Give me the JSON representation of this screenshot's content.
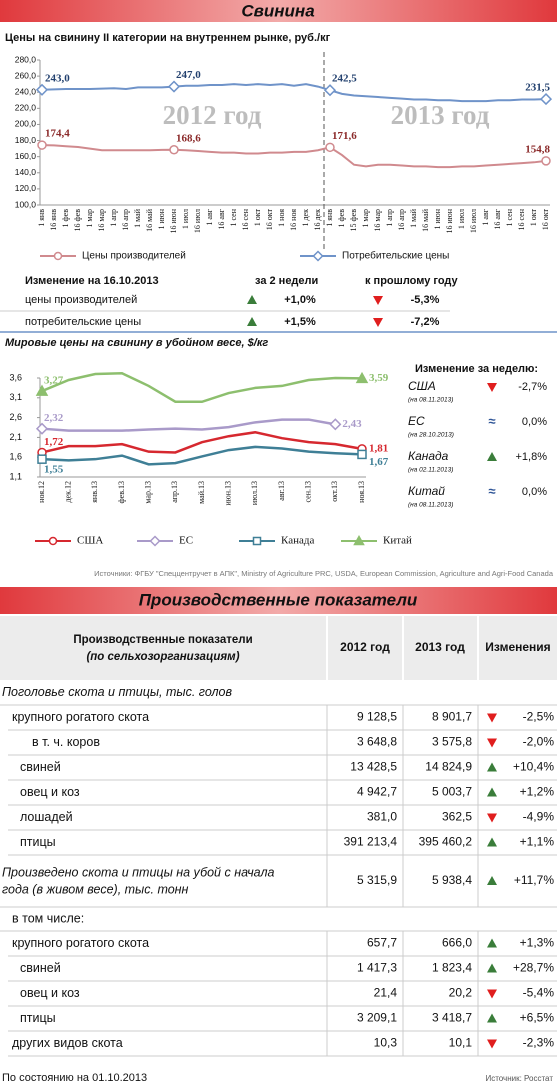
{
  "header": {
    "title": "Свинина"
  },
  "chart_data": [
    {
      "type": "line",
      "title": "Цены на свинину II категории на внутреннем рынке, руб./кг",
      "categories": [
        "1 янв",
        "16 янв",
        "1 фев",
        "16 фев",
        "1 мар",
        "16 мар",
        "1 апр",
        "16 апр",
        "1 май",
        "16 май",
        "1 июн",
        "16 июн",
        "1 июл",
        "16 июл",
        "1 авг",
        "16 авг",
        "1 сен",
        "16 сен",
        "1 окт",
        "16 окт",
        "1 ноя",
        "16 ноя",
        "1 дек",
        "16 дек",
        "1 янв",
        "1 фев",
        "15 фев",
        "1 мар",
        "16 мар",
        "1 апр",
        "16 апр",
        "1 май",
        "16 май",
        "1 июн",
        "16 июн",
        "1 июл",
        "16 июл",
        "1 авг",
        "16 авг",
        "1 сен",
        "16 сен",
        "1 окт",
        "16 окт"
      ],
      "ylim": [
        100,
        280
      ],
      "yticks": [
        {
          "value": 100,
          "label": "100,0"
        },
        {
          "value": 120,
          "label": "120,0"
        },
        {
          "value": 140,
          "label": "140,0"
        },
        {
          "value": 160,
          "label": "160,0"
        },
        {
          "value": 180,
          "label": "180,0"
        },
        {
          "value": 200,
          "label": "200,0"
        },
        {
          "value": 220,
          "label": "220,0"
        },
        {
          "value": 240,
          "label": "240,0"
        },
        {
          "value": 260,
          "label": "260,0"
        },
        {
          "value": 280,
          "label": "280,0"
        }
      ],
      "annotations": [
        "2012 год",
        "2013 год"
      ],
      "series": [
        {
          "name": "Цены производителей",
          "color": "#d08a8e",
          "label_color": "#8b2a2a",
          "marker": "circle",
          "values": [
            174.4,
            174,
            173,
            172,
            170,
            168,
            168,
            168,
            168,
            168,
            168.5,
            168.6,
            168,
            167,
            166,
            165,
            165,
            164,
            164,
            165,
            165,
            166,
            166,
            168,
            171.6,
            162,
            150,
            148,
            150,
            150,
            149,
            148,
            148,
            147,
            147,
            148,
            148,
            149,
            150,
            151,
            152,
            153,
            154.8
          ],
          "value_labels": [
            "174,4",
            null,
            null,
            null,
            null,
            null,
            null,
            null,
            null,
            null,
            null,
            "168,6",
            null,
            null,
            null,
            null,
            null,
            null,
            null,
            null,
            null,
            null,
            null,
            null,
            "171,6",
            null,
            null,
            null,
            null,
            null,
            null,
            null,
            null,
            null,
            null,
            null,
            null,
            null,
            null,
            null,
            null,
            null,
            "154,8"
          ]
        },
        {
          "name": "Потребительские цены",
          "color": "#6f93c9",
          "label_color": "#22406e",
          "marker": "diamond",
          "values": [
            243,
            243.5,
            244,
            244,
            244,
            244.5,
            245,
            244,
            246,
            246,
            246,
            247,
            248,
            248,
            249,
            249,
            250,
            249,
            250,
            249,
            250,
            248,
            250,
            247,
            242.5,
            238,
            236,
            235,
            234,
            233,
            232,
            231,
            231,
            230,
            230,
            229,
            229,
            229,
            230,
            230,
            231,
            231,
            231.5
          ],
          "value_labels": [
            "243,0",
            null,
            null,
            null,
            null,
            null,
            null,
            null,
            null,
            null,
            null,
            "247,0",
            null,
            null,
            null,
            null,
            null,
            null,
            null,
            null,
            null,
            null,
            null,
            null,
            "242,5",
            null,
            null,
            null,
            null,
            null,
            null,
            null,
            null,
            null,
            null,
            null,
            null,
            null,
            null,
            null,
            null,
            null,
            "231,5"
          ]
        }
      ]
    },
    {
      "type": "line",
      "title": "Мировые цены на свинину в убойном весе, $/кг",
      "categories": [
        "ноя.12",
        "дек.12",
        "янв.13",
        "фев.13",
        "мар.13",
        "апр.13",
        "май.13",
        "июн.13",
        "июл.13",
        "авг.13",
        "сен.13",
        "окт.13",
        "ноя.13"
      ],
      "ylim": [
        1.1,
        3.6
      ],
      "yticks": [
        {
          "value": 1.1,
          "label": "1,1"
        },
        {
          "value": 1.6,
          "label": "1,6"
        },
        {
          "value": 2.1,
          "label": "2,1"
        },
        {
          "value": 2.6,
          "label": "2,6"
        },
        {
          "value": 3.1,
          "label": "3,1"
        },
        {
          "value": 3.6,
          "label": "3,6"
        }
      ],
      "series": [
        {
          "name": "США",
          "color": "#d6282f",
          "marker": "circle",
          "values": [
            1.72,
            1.88,
            1.88,
            1.93,
            1.74,
            1.72,
            1.98,
            2.13,
            2.23,
            2.08,
            1.98,
            1.93,
            1.81
          ],
          "value_labels": [
            "1,72",
            null,
            null,
            null,
            null,
            null,
            null,
            null,
            null,
            null,
            null,
            null,
            "1,81"
          ]
        },
        {
          "name": "ЕС",
          "color": "#a99ac9",
          "marker": "diamond",
          "values": [
            2.32,
            2.27,
            2.27,
            2.27,
            2.3,
            2.32,
            2.3,
            2.36,
            2.48,
            2.55,
            2.55,
            2.43,
            null
          ],
          "value_labels": [
            "2,32",
            null,
            null,
            null,
            null,
            null,
            null,
            null,
            null,
            null,
            null,
            "2,43",
            null
          ]
        },
        {
          "name": "Канада",
          "color": "#3f7f96",
          "marker": "square",
          "values": [
            1.55,
            1.52,
            1.55,
            1.64,
            1.42,
            1.45,
            1.62,
            1.78,
            1.86,
            1.82,
            1.74,
            1.7,
            1.67
          ],
          "value_labels": [
            "1,55",
            null,
            null,
            null,
            null,
            null,
            null,
            null,
            null,
            null,
            null,
            null,
            "1,67"
          ]
        },
        {
          "name": "Китай",
          "color": "#8dbf6e",
          "marker": "triangle",
          "values": [
            3.27,
            3.55,
            3.7,
            3.72,
            3.4,
            3.0,
            3.0,
            3.22,
            3.35,
            3.4,
            3.55,
            3.6,
            3.59
          ],
          "value_labels": [
            "3,27",
            null,
            null,
            null,
            null,
            null,
            null,
            null,
            null,
            null,
            null,
            null,
            "3,59"
          ]
        }
      ]
    }
  ],
  "price_change": {
    "title": "Изменение на 16.10.2013",
    "columns": [
      "за 2 недели",
      "к прошлому году"
    ],
    "rows": [
      {
        "label": "цены производителей",
        "values": [
          "+1,0%",
          "-5,3%"
        ]
      },
      {
        "label": "потребительские цены",
        "values": [
          "+1,5%",
          "-7,2%"
        ]
      }
    ]
  },
  "weekly_change": {
    "title": "Изменение за неделю:",
    "rows": [
      {
        "country": "США",
        "date": "(на 08.11.2013)",
        "change": "-2,7%"
      },
      {
        "country": "ЕС",
        "date": "(на 28.10.2013)",
        "symbol": "≈",
        "change": "0,0%"
      },
      {
        "country": "Канада",
        "date": "(на 02.11.2013)",
        "change": "+1,8%"
      },
      {
        "country": "Китай",
        "date": "(на 08.11.2013)",
        "symbol": "≈",
        "change": "0,0%"
      }
    ]
  },
  "sources": "Источники: ФГБУ \"Спеццентручет в АПК\", Ministry of Agriculture PRC, USDA, European Commission, Agriculture and Agri-Food Canada",
  "production": {
    "title": "Производственные показатели",
    "header": [
      "Производственные показатели",
      "(по сельхозорганизациям)",
      "2012 год",
      "2013 год",
      "Изменения"
    ],
    "rows": [
      {
        "label": "Поголовье скота и птицы, тыс. голов",
        "style": "group"
      },
      {
        "label": "крупного рогатого скота",
        "level": 1,
        "values": [
          "9 128,5",
          "8 901,7",
          "-2,5%"
        ]
      },
      {
        "label": "в т. ч. коров",
        "level": 2,
        "values": [
          "3 648,8",
          "3 575,8",
          "-2,0%"
        ]
      },
      {
        "label": "свиней",
        "level": 1,
        "values": [
          "13 428,5",
          "14 824,9",
          "+10,4%"
        ]
      },
      {
        "label": "овец и коз",
        "level": 1,
        "values": [
          "4 942,7",
          "5 003,7",
          "+1,2%"
        ]
      },
      {
        "label": "лошадей",
        "level": 1,
        "values": [
          "381,0",
          "362,5",
          "-4,9%"
        ]
      },
      {
        "label": "птицы",
        "level": 1,
        "values": [
          "391 213,4",
          "395 460,2",
          "+1,1%"
        ]
      },
      {
        "label": [
          "Произведено скота и птицы на убой с начала",
          "года (в живом весе), тыс. тонн"
        ],
        "style": "group",
        "values": [
          "5 315,9",
          "5 938,4",
          "+11,7%"
        ]
      },
      {
        "label": "в том числе:",
        "style": "sub"
      },
      {
        "label": "крупного рогатого скота",
        "level": 1,
        "values": [
          "657,7",
          "666,0",
          "+1,3%"
        ]
      },
      {
        "label": "свиней",
        "level": 1,
        "values": [
          "1 417,3",
          "1 823,4",
          "+28,7%"
        ]
      },
      {
        "label": "овец и коз",
        "level": 1,
        "values": [
          "21,4",
          "20,2",
          "-5,4%"
        ]
      },
      {
        "label": "птицы",
        "level": 1,
        "values": [
          "3 209,1",
          "3 418,7",
          "+6,5%"
        ]
      },
      {
        "label": "других видов скота",
        "level": 1,
        "values": [
          "10,3",
          "10,1",
          "-2,3%"
        ]
      }
    ],
    "date_note": "По состоянию на 01.10.2013",
    "source": "Источник: Росстат"
  }
}
